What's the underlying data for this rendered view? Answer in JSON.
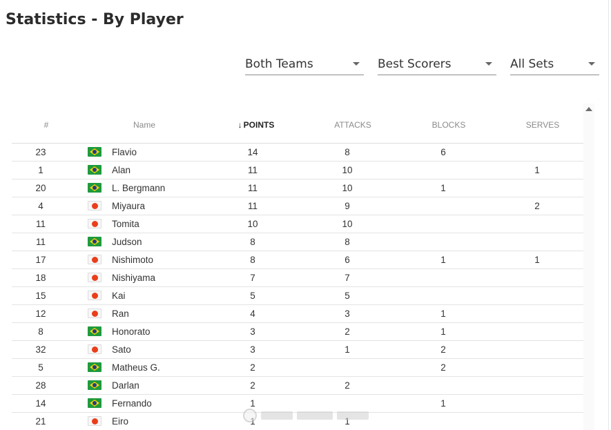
{
  "page": {
    "title": "Statistics - By Player"
  },
  "filters": {
    "teams": "Both Teams",
    "metric": "Best Scorers",
    "sets": "All Sets"
  },
  "table": {
    "headers": {
      "num": "#",
      "name": "Name",
      "points": "POINTS",
      "points_sort_icon": "↓",
      "attacks": "ATTACKS",
      "blocks": "BLOCKS",
      "serves": "SERVES"
    },
    "rows": [
      {
        "num": "23",
        "flag": "brazil-flag-icon",
        "name": "Flavio",
        "points": "14",
        "attacks": "8",
        "blocks": "6",
        "serves": ""
      },
      {
        "num": "1",
        "flag": "brazil-flag-icon",
        "name": "Alan",
        "points": "11",
        "attacks": "10",
        "blocks": "",
        "serves": "1"
      },
      {
        "num": "20",
        "flag": "brazil-flag-icon",
        "name": "L. Bergmann",
        "points": "11",
        "attacks": "10",
        "blocks": "1",
        "serves": ""
      },
      {
        "num": "4",
        "flag": "japan-flag-icon",
        "name": "Miyaura",
        "points": "11",
        "attacks": "9",
        "blocks": "",
        "serves": "2"
      },
      {
        "num": "11",
        "flag": "japan-flag-icon",
        "name": "Tomita",
        "points": "10",
        "attacks": "10",
        "blocks": "",
        "serves": ""
      },
      {
        "num": "11",
        "flag": "brazil-flag-icon",
        "name": "Judson",
        "points": "8",
        "attacks": "8",
        "blocks": "",
        "serves": ""
      },
      {
        "num": "17",
        "flag": "japan-flag-icon",
        "name": "Nishimoto",
        "points": "8",
        "attacks": "6",
        "blocks": "1",
        "serves": "1"
      },
      {
        "num": "18",
        "flag": "japan-flag-icon",
        "name": "Nishiyama",
        "points": "7",
        "attacks": "7",
        "blocks": "",
        "serves": ""
      },
      {
        "num": "15",
        "flag": "japan-flag-icon",
        "name": "Kai",
        "points": "5",
        "attacks": "5",
        "blocks": "",
        "serves": ""
      },
      {
        "num": "12",
        "flag": "japan-flag-icon",
        "name": "Ran",
        "points": "4",
        "attacks": "3",
        "blocks": "1",
        "serves": ""
      },
      {
        "num": "8",
        "flag": "brazil-flag-icon",
        "name": "Honorato",
        "points": "3",
        "attacks": "2",
        "blocks": "1",
        "serves": ""
      },
      {
        "num": "32",
        "flag": "japan-flag-icon",
        "name": "Sato",
        "points": "3",
        "attacks": "1",
        "blocks": "2",
        "serves": ""
      },
      {
        "num": "5",
        "flag": "brazil-flag-icon",
        "name": "Matheus G.",
        "points": "2",
        "attacks": "",
        "blocks": "2",
        "serves": ""
      },
      {
        "num": "28",
        "flag": "brazil-flag-icon",
        "name": "Darlan",
        "points": "2",
        "attacks": "2",
        "blocks": "",
        "serves": ""
      },
      {
        "num": "14",
        "flag": "brazil-flag-icon",
        "name": "Fernando",
        "points": "1",
        "attacks": "",
        "blocks": "1",
        "serves": ""
      },
      {
        "num": "21",
        "flag": "japan-flag-icon",
        "name": "Eiro",
        "points": "1",
        "attacks": "1",
        "blocks": "",
        "serves": ""
      }
    ]
  },
  "colors": {
    "brazil_green": "#1f9a3e",
    "brazil_yellow": "#f5d300",
    "brazil_blue": "#1f3c8c",
    "japan_red": "#ea3e1b",
    "divider": "#e3e3e3",
    "header_text": "#8a8a8a"
  },
  "icons": {
    "dropdown": "caret-down-icon",
    "scroll_up": "scroll-up-arrow-icon",
    "sort": "sort-descending-icon"
  }
}
